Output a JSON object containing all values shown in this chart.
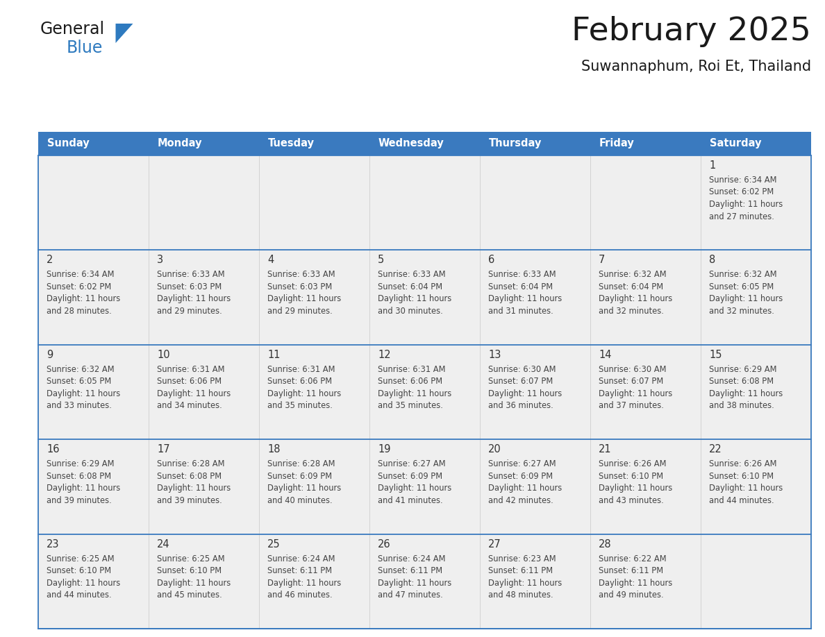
{
  "title": "February 2025",
  "subtitle": "Suwannaphum, Roi Et, Thailand",
  "days_of_week": [
    "Sunday",
    "Monday",
    "Tuesday",
    "Wednesday",
    "Thursday",
    "Friday",
    "Saturday"
  ],
  "header_bg": "#3a7abf",
  "header_text_color": "#ffffff",
  "cell_bg_light": "#efefef",
  "divider_color": "#3a7abf",
  "text_color": "#444444",
  "day_num_color": "#333333",
  "calendar_data": [
    [
      null,
      null,
      null,
      null,
      null,
      null,
      {
        "day": "1",
        "sunrise": "6:34 AM",
        "sunset": "6:02 PM",
        "daylight_h": "11 hours",
        "daylight_m": "and 27 minutes."
      }
    ],
    [
      {
        "day": "2",
        "sunrise": "6:34 AM",
        "sunset": "6:02 PM",
        "daylight_h": "11 hours",
        "daylight_m": "and 28 minutes."
      },
      {
        "day": "3",
        "sunrise": "6:33 AM",
        "sunset": "6:03 PM",
        "daylight_h": "11 hours",
        "daylight_m": "and 29 minutes."
      },
      {
        "day": "4",
        "sunrise": "6:33 AM",
        "sunset": "6:03 PM",
        "daylight_h": "11 hours",
        "daylight_m": "and 29 minutes."
      },
      {
        "day": "5",
        "sunrise": "6:33 AM",
        "sunset": "6:04 PM",
        "daylight_h": "11 hours",
        "daylight_m": "and 30 minutes."
      },
      {
        "day": "6",
        "sunrise": "6:33 AM",
        "sunset": "6:04 PM",
        "daylight_h": "11 hours",
        "daylight_m": "and 31 minutes."
      },
      {
        "day": "7",
        "sunrise": "6:32 AM",
        "sunset": "6:04 PM",
        "daylight_h": "11 hours",
        "daylight_m": "and 32 minutes."
      },
      {
        "day": "8",
        "sunrise": "6:32 AM",
        "sunset": "6:05 PM",
        "daylight_h": "11 hours",
        "daylight_m": "and 32 minutes."
      }
    ],
    [
      {
        "day": "9",
        "sunrise": "6:32 AM",
        "sunset": "6:05 PM",
        "daylight_h": "11 hours",
        "daylight_m": "and 33 minutes."
      },
      {
        "day": "10",
        "sunrise": "6:31 AM",
        "sunset": "6:06 PM",
        "daylight_h": "11 hours",
        "daylight_m": "and 34 minutes."
      },
      {
        "day": "11",
        "sunrise": "6:31 AM",
        "sunset": "6:06 PM",
        "daylight_h": "11 hours",
        "daylight_m": "and 35 minutes."
      },
      {
        "day": "12",
        "sunrise": "6:31 AM",
        "sunset": "6:06 PM",
        "daylight_h": "11 hours",
        "daylight_m": "and 35 minutes."
      },
      {
        "day": "13",
        "sunrise": "6:30 AM",
        "sunset": "6:07 PM",
        "daylight_h": "11 hours",
        "daylight_m": "and 36 minutes."
      },
      {
        "day": "14",
        "sunrise": "6:30 AM",
        "sunset": "6:07 PM",
        "daylight_h": "11 hours",
        "daylight_m": "and 37 minutes."
      },
      {
        "day": "15",
        "sunrise": "6:29 AM",
        "sunset": "6:08 PM",
        "daylight_h": "11 hours",
        "daylight_m": "and 38 minutes."
      }
    ],
    [
      {
        "day": "16",
        "sunrise": "6:29 AM",
        "sunset": "6:08 PM",
        "daylight_h": "11 hours",
        "daylight_m": "and 39 minutes."
      },
      {
        "day": "17",
        "sunrise": "6:28 AM",
        "sunset": "6:08 PM",
        "daylight_h": "11 hours",
        "daylight_m": "and 39 minutes."
      },
      {
        "day": "18",
        "sunrise": "6:28 AM",
        "sunset": "6:09 PM",
        "daylight_h": "11 hours",
        "daylight_m": "and 40 minutes."
      },
      {
        "day": "19",
        "sunrise": "6:27 AM",
        "sunset": "6:09 PM",
        "daylight_h": "11 hours",
        "daylight_m": "and 41 minutes."
      },
      {
        "day": "20",
        "sunrise": "6:27 AM",
        "sunset": "6:09 PM",
        "daylight_h": "11 hours",
        "daylight_m": "and 42 minutes."
      },
      {
        "day": "21",
        "sunrise": "6:26 AM",
        "sunset": "6:10 PM",
        "daylight_h": "11 hours",
        "daylight_m": "and 43 minutes."
      },
      {
        "day": "22",
        "sunrise": "6:26 AM",
        "sunset": "6:10 PM",
        "daylight_h": "11 hours",
        "daylight_m": "and 44 minutes."
      }
    ],
    [
      {
        "day": "23",
        "sunrise": "6:25 AM",
        "sunset": "6:10 PM",
        "daylight_h": "11 hours",
        "daylight_m": "and 44 minutes."
      },
      {
        "day": "24",
        "sunrise": "6:25 AM",
        "sunset": "6:10 PM",
        "daylight_h": "11 hours",
        "daylight_m": "and 45 minutes."
      },
      {
        "day": "25",
        "sunrise": "6:24 AM",
        "sunset": "6:11 PM",
        "daylight_h": "11 hours",
        "daylight_m": "and 46 minutes."
      },
      {
        "day": "26",
        "sunrise": "6:24 AM",
        "sunset": "6:11 PM",
        "daylight_h": "11 hours",
        "daylight_m": "and 47 minutes."
      },
      {
        "day": "27",
        "sunrise": "6:23 AM",
        "sunset": "6:11 PM",
        "daylight_h": "11 hours",
        "daylight_m": "and 48 minutes."
      },
      {
        "day": "28",
        "sunrise": "6:22 AM",
        "sunset": "6:11 PM",
        "daylight_h": "11 hours",
        "daylight_m": "and 49 minutes."
      },
      null
    ]
  ],
  "logo_general_color": "#1a1a1a",
  "logo_blue_color": "#2e7abf",
  "logo_triangle_color": "#2e7abf"
}
